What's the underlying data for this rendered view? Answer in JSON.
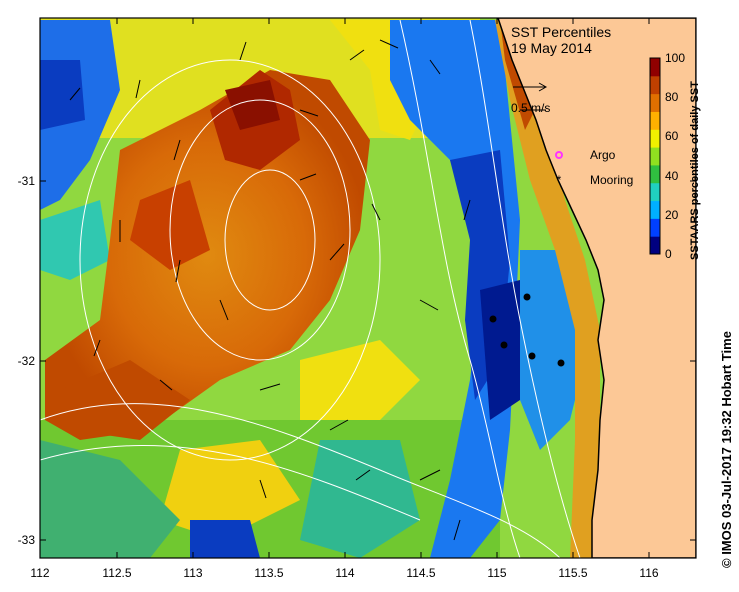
{
  "title": "SST Percentiles",
  "date": "19 May 2014",
  "velocity_scale_label": "0.5 m/s",
  "legend": {
    "argo_label": "Argo",
    "mooring_label": "Mooring",
    "argo_color": "#ff33ff",
    "mooring_color": "#000000"
  },
  "colorbar": {
    "label": "SSTAARS percentiles of daily SST",
    "ticks": [
      "100",
      "80",
      "60",
      "40",
      "20",
      "0"
    ],
    "colors": [
      "#000080",
      "#0040ff",
      "#00b0ff",
      "#20d0c0",
      "#30c040",
      "#90e020",
      "#f0f000",
      "#ffb000",
      "#e07000",
      "#c04000",
      "#900000"
    ]
  },
  "x_axis": {
    "ticks": [
      "112",
      "112.5",
      "113",
      "113.5",
      "114",
      "114.5",
      "115",
      "115.5",
      "116"
    ]
  },
  "y_axis": {
    "ticks": [
      "-31",
      "-32",
      "-33"
    ]
  },
  "credit": "© IMOS 03-Jul-2017 19:32 Hobart Time",
  "colors": {
    "land": "#fcc896",
    "coast": "#000000",
    "frame": "#000000",
    "contour": "#ffffff"
  }
}
